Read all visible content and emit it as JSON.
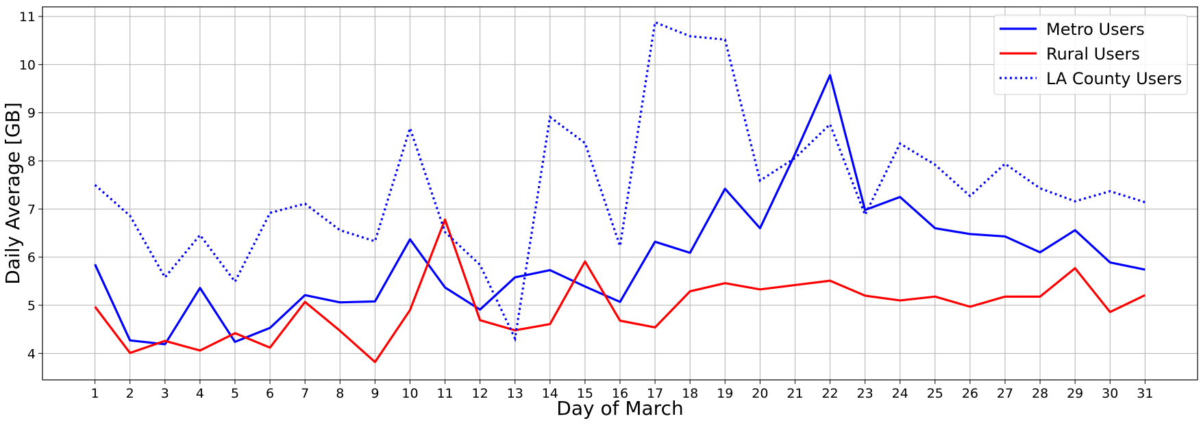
{
  "chart_data": {
    "type": "line",
    "xlabel": "Day of March",
    "ylabel": "Daily Average [GB]",
    "x": [
      1,
      2,
      3,
      4,
      5,
      6,
      7,
      8,
      9,
      10,
      11,
      12,
      13,
      14,
      15,
      16,
      17,
      18,
      19,
      20,
      21,
      22,
      23,
      24,
      25,
      26,
      27,
      28,
      29,
      30,
      31
    ],
    "xlim": [
      -0.5,
      32.5
    ],
    "ylim": [
      3.45,
      11.2
    ],
    "yticks": [
      4,
      5,
      6,
      7,
      8,
      9,
      10,
      11
    ],
    "grid": true,
    "legend_position": "top-right",
    "series": [
      {
        "name": "Metro Users",
        "color": "#0000ff",
        "style": "solid",
        "values": [
          5.85,
          4.27,
          4.19,
          5.36,
          4.24,
          4.53,
          5.21,
          5.06,
          5.08,
          6.37,
          5.37,
          4.91,
          5.58,
          5.73,
          5.39,
          5.07,
          6.32,
          6.09,
          7.42,
          6.6,
          8.14,
          9.78,
          6.98,
          7.25,
          6.6,
          6.48,
          6.43,
          6.1,
          6.56,
          5.89,
          5.74
        ]
      },
      {
        "name": "Rural Users",
        "color": "#ff0000",
        "style": "solid",
        "values": [
          4.97,
          4.01,
          4.26,
          4.06,
          4.42,
          4.12,
          5.07,
          4.47,
          3.82,
          4.9,
          6.78,
          4.69,
          4.48,
          4.61,
          5.91,
          4.68,
          4.54,
          5.29,
          5.46,
          5.33,
          5.42,
          5.51,
          5.2,
          5.1,
          5.18,
          4.97,
          5.18,
          5.18,
          5.77,
          4.86,
          5.21
        ]
      },
      {
        "name": "LA County Users",
        "color": "#0000ff",
        "style": "dotted",
        "values": [
          7.5,
          6.86,
          5.58,
          6.46,
          5.49,
          6.92,
          7.11,
          6.56,
          6.33,
          8.68,
          6.52,
          5.84,
          4.31,
          8.91,
          8.37,
          6.23,
          10.88,
          10.59,
          10.52,
          7.59,
          8.06,
          8.76,
          6.88,
          8.36,
          7.92,
          7.27,
          7.94,
          7.43,
          7.16,
          7.37,
          7.14
        ]
      }
    ]
  }
}
